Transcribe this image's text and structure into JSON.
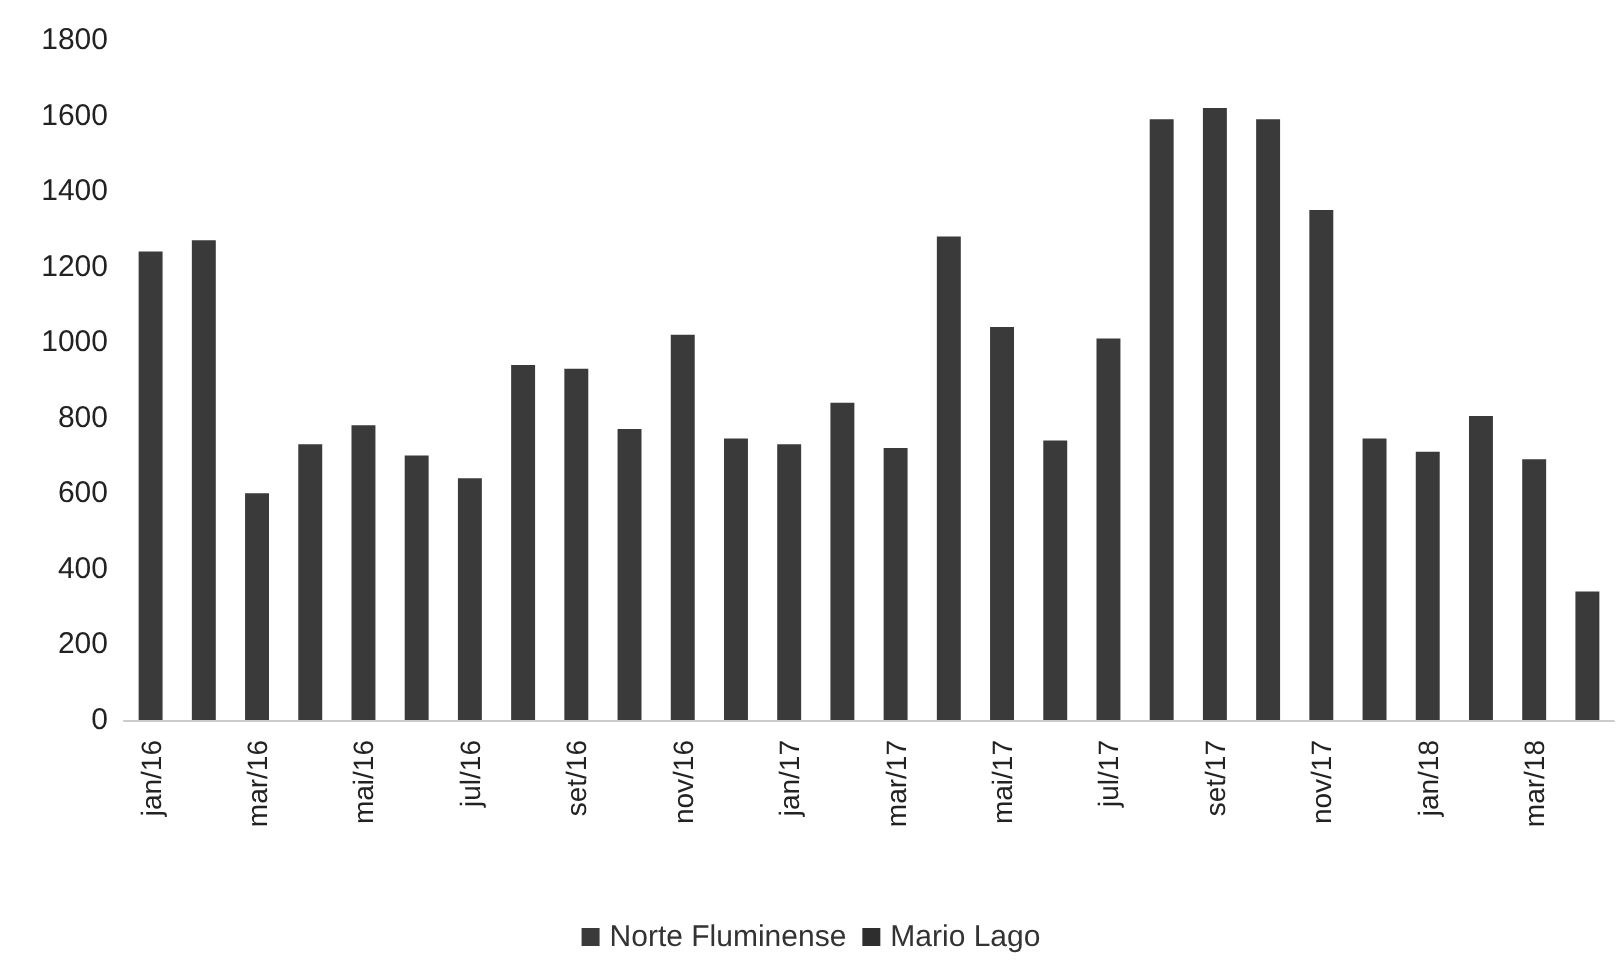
{
  "chart_data": {
    "type": "bar",
    "categories": [
      "jan/16",
      null,
      "mar/16",
      null,
      "mai/16",
      null,
      "jul/16",
      null,
      "set/16",
      null,
      "nov/16",
      null,
      "jan/17",
      null,
      "mar/17",
      null,
      "mai/17",
      null,
      "jul/17",
      null,
      "set/17",
      null,
      "nov/17",
      null,
      "jan/18",
      null,
      "mar/18",
      null
    ],
    "series": [
      {
        "name": "Norte Fluminense",
        "color": "#3a3a3a",
        "values": [
          1240,
          1270,
          600,
          730,
          780,
          700,
          640,
          940,
          930,
          770,
          1020,
          745,
          730,
          840,
          720,
          1280,
          1040,
          740,
          1010,
          1590,
          1620,
          1590,
          1350,
          745,
          710,
          805,
          690,
          340
        ]
      },
      {
        "name": "Mario Lago",
        "color": "#2e2e2e",
        "values": [
          null,
          null,
          null,
          null,
          null,
          null,
          null,
          null,
          null,
          null,
          null,
          null,
          null,
          null,
          null,
          null,
          null,
          null,
          null,
          null,
          null,
          null,
          null,
          null,
          null,
          null,
          null,
          null
        ]
      }
    ],
    "ylim": [
      0,
      1800
    ],
    "yticks": [
      0,
      200,
      400,
      600,
      800,
      1000,
      1200,
      1400,
      1600,
      1800
    ],
    "grid": false,
    "legend": "bottom"
  }
}
